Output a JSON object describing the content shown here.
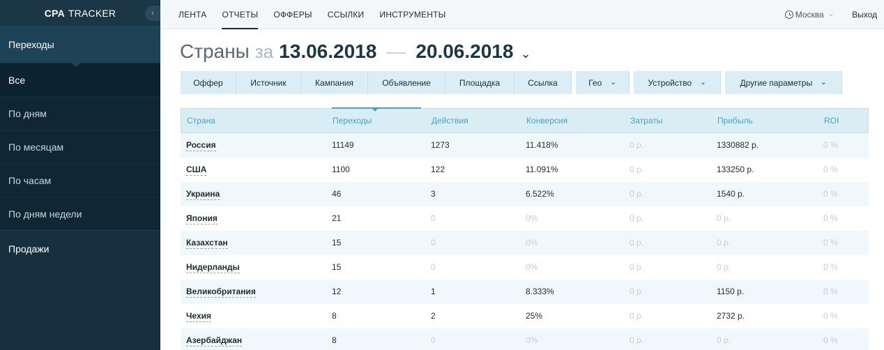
{
  "brand": {
    "bold": "CPA",
    "rest": "TRACKER",
    "collapse_icon": "‹"
  },
  "sidebar": {
    "section_label": "Переходы",
    "items": [
      {
        "label": "Все"
      },
      {
        "label": "По дням"
      },
      {
        "label": "По месяцам"
      },
      {
        "label": "По часам"
      },
      {
        "label": "По дням недели"
      }
    ],
    "footer_label": "Продажи"
  },
  "nav": {
    "items": [
      {
        "label": "ЛЕНТА"
      },
      {
        "label": "ОТЧЕТЫ"
      },
      {
        "label": "ОФФЕРЫ"
      },
      {
        "label": "ССЫЛКИ"
      },
      {
        "label": "ИНСТРУМЕНТЫ"
      }
    ],
    "active_index": 1,
    "timezone": "Москва",
    "timezone_chevron": "⌄",
    "logout": "Выход"
  },
  "heading": {
    "title": "Страны",
    "connector": "за",
    "date_from": "13.06.2018",
    "dash": "—",
    "date_to": "20.06.2018",
    "chevron": "⌄"
  },
  "filters": [
    {
      "label": "Оффер"
    },
    {
      "label": "Источник"
    },
    {
      "label": "Кампания"
    },
    {
      "label": "Объявление"
    },
    {
      "label": "Площадка"
    },
    {
      "label": "Ссылка"
    },
    {
      "label": "Гео",
      "chevron": "⌄"
    },
    {
      "label": "Устройство",
      "chevron": "⌄"
    },
    {
      "label": "Другие параметры",
      "chevron": "⌄"
    }
  ],
  "table": {
    "columns": [
      "Страна",
      "Переходы",
      "Действия",
      "Конверсия",
      "Затраты",
      "Прибыль",
      "ROI"
    ],
    "rows": [
      [
        "Россия",
        "11149",
        "1273",
        "11.418%",
        "0 р.",
        "1330882 р.",
        "0 %"
      ],
      [
        "США",
        "1100",
        "122",
        "11.091%",
        "0 р.",
        "133250 р.",
        "0 %"
      ],
      [
        "Украина",
        "46",
        "3",
        "6.522%",
        "0 р.",
        "1540 р.",
        "0 %"
      ],
      [
        "Япония",
        "21",
        "0",
        "0%",
        "0 р.",
        "0 р.",
        "0 %"
      ],
      [
        "Казахстан",
        "15",
        "0",
        "0%",
        "0 р.",
        "0 р.",
        "0 %"
      ],
      [
        "Нидерланды",
        "15",
        "0",
        "0%",
        "0 р.",
        "0 р.",
        "0 %"
      ],
      [
        "Великобритания",
        "12",
        "1",
        "8.333%",
        "0 р.",
        "1150 р.",
        "0 %"
      ],
      [
        "Чехия",
        "8",
        "2",
        "25%",
        "0 р.",
        "2732 р.",
        "0 %"
      ],
      [
        "Азербайджан",
        "8",
        "0",
        "0%",
        "0 р.",
        "0 р.",
        "0 %"
      ]
    ]
  },
  "colors": {
    "sidebar_bg": "#16303f",
    "accent_blue": "#4aa3c7",
    "filter_bg": "#dbeef6",
    "muted_value": "#c4ced4"
  }
}
